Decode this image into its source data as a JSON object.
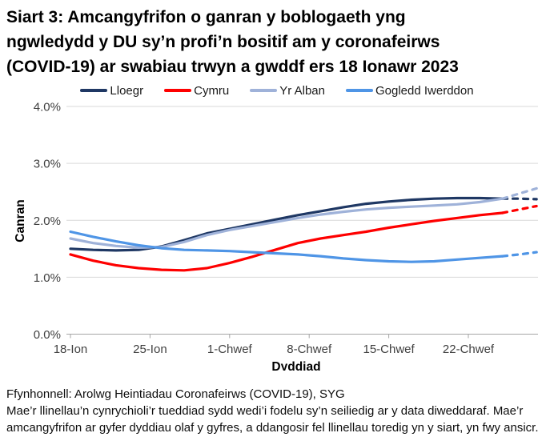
{
  "header": {
    "lines": [
      "Siart 3: Amcangyfrifon o ganran y boblogaeth yng",
      "ngwledydd y DU sy’n profi’n bositif am y coronafeirws",
      "(COVID-19) ar swabiau trwyn a gwddf ers 18 Ionawr 2023"
    ]
  },
  "footer": {
    "source": "Ffynhonnell: Arolwg Heintiadau Coronafeirws (COVID-19), SYG",
    "note": "Mae’r llinellau’n cynrychioli’r tueddiad sydd wedi’i fodelu sy’n seiliedig ar y data diweddaraf. Mae’r amcangyfrifon ar gyfer dyddiau olaf y gyfres, a ddangosir fel llinellau toredig yn y siart, yn fwy ansicr."
  },
  "chart_data": {
    "type": "line",
    "title": "Siart 3: Amcangyfrifon o ganran y boblogaeth yng ngwledydd y DU sy’n profi’n bositif am y coronafeirws (COVID-19) ar swabiau trwyn a gwddf ers 18 Ionawr 2023",
    "xlabel": "Dyddiad",
    "ylabel": "Canran",
    "ylim": [
      0,
      4
    ],
    "y_tick_values": [
      0,
      1,
      2,
      3,
      4
    ],
    "y_tick_labels": [
      "0.0%",
      "1.0%",
      "2.0%",
      "3.0%",
      "4.0%"
    ],
    "x_tick_labels": [
      "18-Ion",
      "25-Ion",
      "1-Chwef",
      "8-Chwef",
      "15-Chwef",
      "22-Chwef"
    ],
    "x_tick_days": [
      0,
      7,
      14,
      21,
      28,
      35
    ],
    "x_unit_note": "dyddiau ers 18-Ion",
    "grid": true,
    "legend_position": "top",
    "dashed_from_day": 38,
    "series": [
      {
        "name": "Lloegr",
        "color": "#1f3864",
        "points": [
          [
            0,
            1.5
          ],
          [
            2,
            1.48
          ],
          [
            4,
            1.47
          ],
          [
            6,
            1.48
          ],
          [
            8,
            1.54
          ],
          [
            10,
            1.65
          ],
          [
            12,
            1.77
          ],
          [
            14,
            1.85
          ],
          [
            16,
            1.93
          ],
          [
            18,
            2.01
          ],
          [
            20,
            2.09
          ],
          [
            22,
            2.16
          ],
          [
            24,
            2.23
          ],
          [
            26,
            2.29
          ],
          [
            28,
            2.33
          ],
          [
            30,
            2.36
          ],
          [
            32,
            2.38
          ],
          [
            34,
            2.39
          ],
          [
            36,
            2.39
          ],
          [
            38,
            2.38
          ],
          [
            39.5,
            2.38
          ],
          [
            41,
            2.37
          ]
        ]
      },
      {
        "name": "Cymru",
        "color": "#fe0000",
        "points": [
          [
            0,
            1.4
          ],
          [
            2,
            1.29
          ],
          [
            4,
            1.21
          ],
          [
            6,
            1.16
          ],
          [
            8,
            1.13
          ],
          [
            10,
            1.12
          ],
          [
            12,
            1.16
          ],
          [
            14,
            1.25
          ],
          [
            16,
            1.36
          ],
          [
            18,
            1.48
          ],
          [
            20,
            1.6
          ],
          [
            22,
            1.68
          ],
          [
            24,
            1.74
          ],
          [
            26,
            1.8
          ],
          [
            28,
            1.87
          ],
          [
            30,
            1.93
          ],
          [
            32,
            1.99
          ],
          [
            34,
            2.04
          ],
          [
            36,
            2.09
          ],
          [
            38,
            2.13
          ],
          [
            39.5,
            2.19
          ],
          [
            41,
            2.25
          ]
        ]
      },
      {
        "name": "Yr Alban",
        "color": "#9fb2d9",
        "points": [
          [
            0,
            1.68
          ],
          [
            2,
            1.6
          ],
          [
            4,
            1.55
          ],
          [
            6,
            1.52
          ],
          [
            8,
            1.53
          ],
          [
            10,
            1.62
          ],
          [
            12,
            1.74
          ],
          [
            14,
            1.83
          ],
          [
            16,
            1.9
          ],
          [
            18,
            1.97
          ],
          [
            20,
            2.04
          ],
          [
            22,
            2.1
          ],
          [
            24,
            2.15
          ],
          [
            26,
            2.19
          ],
          [
            28,
            2.22
          ],
          [
            30,
            2.24
          ],
          [
            32,
            2.26
          ],
          [
            34,
            2.28
          ],
          [
            36,
            2.32
          ],
          [
            38,
            2.38
          ],
          [
            39.5,
            2.47
          ],
          [
            41,
            2.56
          ]
        ]
      },
      {
        "name": "Gogledd Iwerddon",
        "color": "#4f95e6",
        "points": [
          [
            0,
            1.8
          ],
          [
            2,
            1.71
          ],
          [
            4,
            1.63
          ],
          [
            6,
            1.56
          ],
          [
            8,
            1.51
          ],
          [
            10,
            1.48
          ],
          [
            12,
            1.47
          ],
          [
            14,
            1.46
          ],
          [
            16,
            1.44
          ],
          [
            18,
            1.42
          ],
          [
            20,
            1.4
          ],
          [
            22,
            1.37
          ],
          [
            24,
            1.33
          ],
          [
            26,
            1.3
          ],
          [
            28,
            1.28
          ],
          [
            30,
            1.27
          ],
          [
            32,
            1.28
          ],
          [
            34,
            1.31
          ],
          [
            36,
            1.34
          ],
          [
            38,
            1.37
          ],
          [
            39.5,
            1.4
          ],
          [
            41,
            1.44
          ]
        ]
      }
    ],
    "colors": {
      "gridline": "#d9d9d9",
      "axis": "#a6a6a6",
      "tick_text": "#404040"
    }
  }
}
